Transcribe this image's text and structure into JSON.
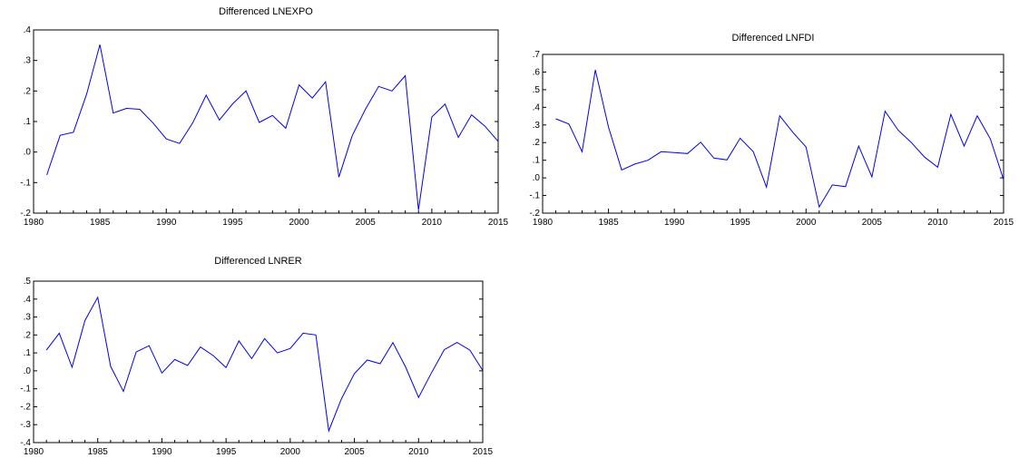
{
  "colors": {
    "line": "#0000ee",
    "axis": "#000000",
    "background": "#ffffff"
  },
  "chart_data": [
    {
      "type": "line",
      "title": "Differenced LNEXPO",
      "xlabel": "",
      "ylabel": "",
      "xlim": [
        1980,
        2015
      ],
      "ylim": [
        -0.2,
        0.4
      ],
      "grid": false,
      "legend": "none",
      "x_ticks": [
        1980,
        1985,
        1990,
        1995,
        2000,
        2005,
        2010,
        2015
      ],
      "x_tick_labels": [
        "1980",
        "1985",
        "1990",
        "1995",
        "2000",
        "2005",
        "2010",
        "2015"
      ],
      "y_ticks": [
        -0.2,
        -0.1,
        0.0,
        0.1,
        0.2,
        0.3,
        0.4
      ],
      "y_tick_labels": [
        "-.2",
        "-.1",
        ".0",
        ".1",
        ".2",
        ".3",
        ".4"
      ],
      "series": [
        {
          "x": [
            1981,
            1982,
            1983,
            1984,
            1985,
            1986,
            1987,
            1988,
            1989,
            1990,
            1991,
            1992,
            1993,
            1994,
            1995,
            1996,
            1997,
            1998,
            1999,
            2000,
            2001,
            2002,
            2003,
            2004,
            2005,
            2006,
            2007,
            2008,
            2009,
            2010,
            2011,
            2012,
            2013,
            2014,
            2015
          ],
          "values": [
            -0.075,
            0.055,
            0.065,
            0.19,
            0.352,
            0.128,
            0.143,
            0.14,
            0.095,
            0.043,
            0.028,
            0.096,
            0.186,
            0.105,
            0.158,
            0.2,
            0.097,
            0.12,
            0.078,
            0.22,
            0.177,
            0.23,
            -0.082,
            0.053,
            0.14,
            0.215,
            0.2,
            0.25,
            -0.19,
            0.115,
            0.157,
            0.048,
            0.122,
            0.085,
            0.035
          ]
        }
      ]
    },
    {
      "type": "line",
      "title": "Differenced LNFDI",
      "xlabel": "",
      "ylabel": "",
      "xlim": [
        1980,
        2015
      ],
      "ylim": [
        -0.2,
        0.7
      ],
      "grid": false,
      "legend": "none",
      "x_ticks": [
        1980,
        1985,
        1990,
        1995,
        2000,
        2005,
        2010,
        2015
      ],
      "x_tick_labels": [
        "1980",
        "1985",
        "1990",
        "1995",
        "2000",
        "2005",
        "2010",
        "2015"
      ],
      "y_ticks": [
        -0.2,
        -0.1,
        0.0,
        0.1,
        0.2,
        0.3,
        0.4,
        0.5,
        0.6,
        0.7
      ],
      "y_tick_labels": [
        "-.2",
        "-.1",
        ".0",
        ".1",
        ".2",
        ".3",
        ".4",
        ".5",
        ".6",
        ".7"
      ],
      "series": [
        {
          "x": [
            1981,
            1982,
            1983,
            1984,
            1985,
            1986,
            1987,
            1988,
            1989,
            1990,
            1991,
            1992,
            1993,
            1994,
            1995,
            1996,
            1997,
            1998,
            1999,
            2000,
            2001,
            2002,
            2003,
            2004,
            2005,
            2006,
            2007,
            2008,
            2009,
            2010,
            2011,
            2012,
            2013,
            2014,
            2015
          ],
          "values": [
            0.335,
            0.305,
            0.148,
            0.612,
            0.288,
            0.045,
            0.078,
            0.1,
            0.148,
            0.143,
            0.138,
            0.202,
            0.112,
            0.102,
            0.225,
            0.148,
            -0.053,
            0.352,
            0.258,
            0.175,
            -0.165,
            -0.04,
            -0.05,
            0.18,
            0.005,
            0.378,
            0.27,
            0.2,
            0.118,
            0.06,
            0.36,
            0.18,
            0.352,
            0.22,
            -0.01
          ]
        }
      ]
    },
    {
      "type": "line",
      "title": "Differenced LNRER",
      "xlabel": "",
      "ylabel": "",
      "xlim": [
        1980,
        2015
      ],
      "ylim": [
        -0.4,
        0.5
      ],
      "grid": false,
      "legend": "none",
      "x_ticks": [
        1980,
        1985,
        1990,
        1995,
        2000,
        2005,
        2010,
        2015
      ],
      "x_tick_labels": [
        "1980",
        "1985",
        "1990",
        "1995",
        "2000",
        "2005",
        "2010",
        "2015"
      ],
      "y_ticks": [
        -0.4,
        -0.3,
        -0.2,
        -0.1,
        0.0,
        0.1,
        0.2,
        0.3,
        0.4,
        0.5
      ],
      "y_tick_labels": [
        "-.4",
        "-.3",
        "-.2",
        "-.1",
        ".0",
        ".1",
        ".2",
        ".3",
        ".4",
        ".5"
      ],
      "series": [
        {
          "x": [
            1981,
            1982,
            1983,
            1984,
            1985,
            1986,
            1987,
            1988,
            1989,
            1990,
            1991,
            1992,
            1993,
            1994,
            1995,
            1996,
            1997,
            1998,
            1999,
            2000,
            2001,
            2002,
            2003,
            2004,
            2005,
            2006,
            2007,
            2008,
            2009,
            2010,
            2011,
            2012,
            2013,
            2014,
            2015
          ],
          "values": [
            0.115,
            0.21,
            0.02,
            0.28,
            0.41,
            0.025,
            -0.115,
            0.105,
            0.14,
            -0.012,
            0.063,
            0.03,
            0.133,
            0.085,
            0.018,
            0.167,
            0.068,
            0.18,
            0.1,
            0.125,
            0.21,
            0.2,
            -0.335,
            -0.155,
            -0.015,
            0.06,
            0.04,
            0.157,
            0.02,
            -0.148,
            -0.012,
            0.118,
            0.158,
            0.115,
            0.002
          ]
        }
      ]
    }
  ]
}
